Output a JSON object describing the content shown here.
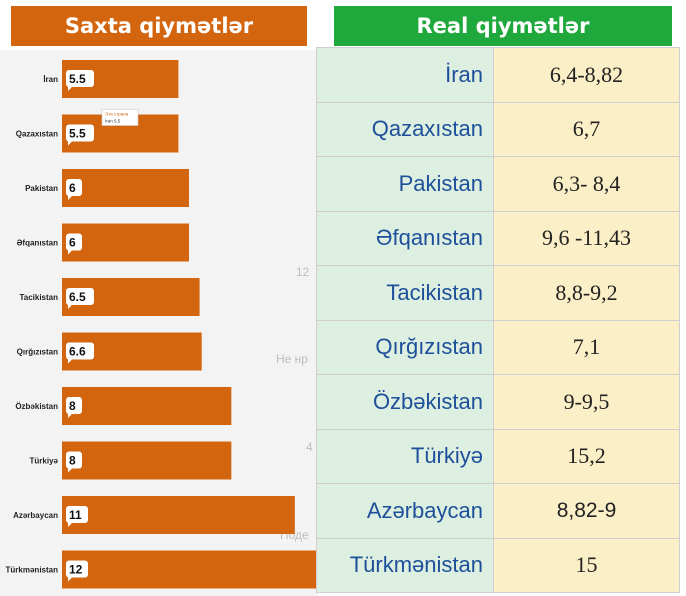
{
  "fake_panel": {
    "title": "Saxta qiymətlər"
  },
  "real_panel": {
    "title": "Real qiymətlər"
  },
  "colors": {
    "bar": "#d4650f",
    "fake_header": "#d4650f",
    "real_header": "#1fa83c",
    "table_country_bg": "#dcefe0",
    "table_value_bg": "#fbefc7",
    "country_text": "#1e4f9a"
  },
  "chart_data": {
    "type": "bar",
    "orientation": "horizontal",
    "title": "Saxta qiymətlər",
    "categories": [
      "İran",
      "Qazaxıstan",
      "Pakistan",
      "Əfqanıstan",
      "Tacikistan",
      "Qırğızıstan",
      "Özbəkistan",
      "Türkiyə",
      "Azərbaycan",
      "Türkmənistan"
    ],
    "values": [
      5.5,
      5.5,
      6,
      6,
      6.5,
      6.6,
      8,
      8,
      11,
      12
    ],
    "value_labels": [
      "5.5",
      "5.5",
      "6",
      "6",
      "6.5",
      "6.6",
      "8",
      "8",
      "11",
      "12"
    ],
    "tooltip": {
      "title": "Эта страна",
      "text": "İran 5.5"
    },
    "xlim": [
      0,
      12
    ],
    "grid": false,
    "legend": "none"
  },
  "background_ghost_text": [
    "12",
    "Не нр",
    "4",
    "Поде"
  ],
  "real_table": {
    "rows": [
      {
        "country": "İran",
        "value": "6,4-8,82",
        "serif": true
      },
      {
        "country": "Qazaxıstan",
        "value": "6,7",
        "serif": true
      },
      {
        "country": "Pakistan",
        "value": "6,3- 8,4",
        "serif": true
      },
      {
        "country": "Əfqanıstan",
        "value": "9,6 -11,43",
        "serif": true
      },
      {
        "country": "Tacikistan",
        "value": "8,8-9,2",
        "serif": true
      },
      {
        "country": "Qırğızıstan",
        "value": "7,1",
        "serif": true
      },
      {
        "country": "Özbəkistan",
        "value": "9-9,5",
        "serif": true
      },
      {
        "country": "Türkiyə",
        "value": "15,2",
        "serif": true
      },
      {
        "country": "Azərbaycan",
        "value": "8,82-9",
        "serif": false
      },
      {
        "country": "Türkmənistan",
        "value": "15",
        "serif": true
      }
    ]
  }
}
